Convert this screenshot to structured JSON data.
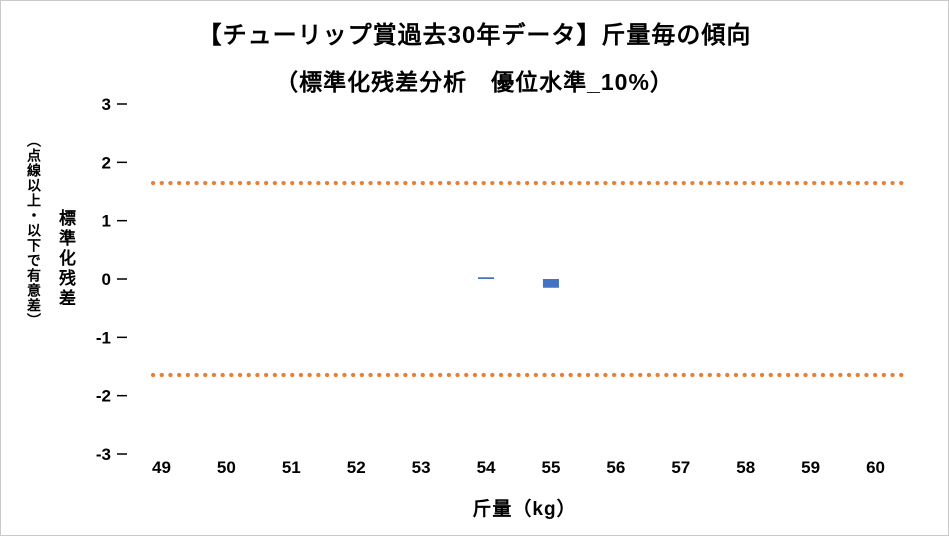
{
  "title": {
    "line1": "【チューリップ賞過去30年データ】斤量毎の傾向",
    "line2": "（標準化残差分析　優位水準_10%）"
  },
  "y_axis": {
    "label_main": "標準化残差",
    "label_sub": "（点線以上・以下で有意差）",
    "ticks": [
      "3",
      "2",
      "1",
      "0",
      "-1",
      "-2",
      "-3"
    ],
    "tick_values": [
      3,
      2,
      1,
      0,
      -1,
      -2,
      -3
    ]
  },
  "x_axis": {
    "label": "斤量（kg）"
  },
  "colors": {
    "bar": "#4472C4",
    "significance_line": "#ED7D31",
    "axis_text": "#000000",
    "frame_border": "#c9c9c9"
  },
  "chart_data": {
    "type": "bar",
    "title": "【チューリップ賞過去30年データ】斤量毎の傾向（標準化残差分析　優位水準_10%）",
    "xlabel": "斤量（kg）",
    "ylabel": "標準化残差（点線以上・以下で有意差）",
    "categories": [
      "49",
      "50",
      "51",
      "52",
      "53",
      "54",
      "55",
      "56",
      "57",
      "58",
      "59",
      "60"
    ],
    "series": [
      {
        "name": "標準化残差",
        "values": [
          0,
          0,
          0,
          0,
          0,
          0.03,
          -0.15,
          0,
          0,
          0,
          0,
          0
        ]
      }
    ],
    "significance_lines": {
      "upper": 1.645,
      "lower": -1.645,
      "style": "dotted",
      "color": "#ED7D31"
    },
    "ylim": [
      -3,
      3
    ],
    "grid": false,
    "legend": "none"
  }
}
